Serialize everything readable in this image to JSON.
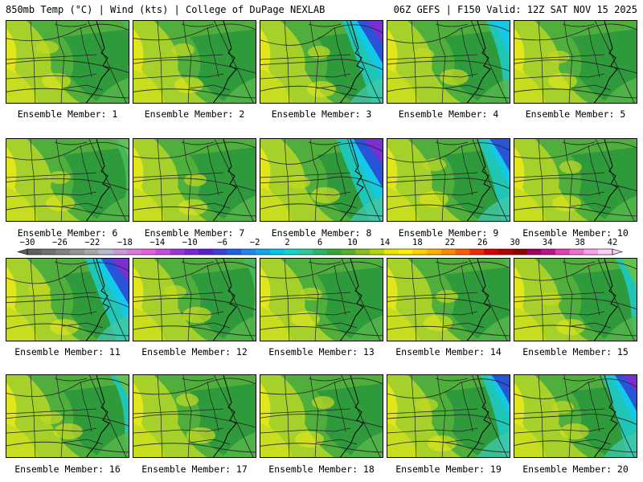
{
  "header": {
    "left_title": "850mb Temp (°C) | Wind (kts) | College of DuPage NEXLAB",
    "right_title": "06Z GEFS | F150 Valid: 12Z SAT NOV 15 2025"
  },
  "members": [
    {
      "label": "Ensemble Member: 1",
      "cold": 0.15
    },
    {
      "label": "Ensemble Member: 2",
      "cold": 0.05
    },
    {
      "label": "Ensemble Member: 3",
      "cold": 0.75
    },
    {
      "label": "Ensemble Member: 4",
      "cold": 0.45
    },
    {
      "label": "Ensemble Member: 5",
      "cold": 0.05
    },
    {
      "label": "Ensemble Member: 6",
      "cold": 0.3
    },
    {
      "label": "Ensemble Member: 7",
      "cold": 0.1
    },
    {
      "label": "Ensemble Member: 8",
      "cold": 0.85
    },
    {
      "label": "Ensemble Member: 9",
      "cold": 0.6
    },
    {
      "label": "Ensemble Member: 10",
      "cold": 0.1
    },
    {
      "label": "Ensemble Member: 11",
      "cold": 0.8
    },
    {
      "label": "Ensemble Member: 12",
      "cold": 0.25
    },
    {
      "label": "Ensemble Member: 13",
      "cold": 0.1
    },
    {
      "label": "Ensemble Member: 14",
      "cold": 0.15
    },
    {
      "label": "Ensemble Member: 15",
      "cold": 0.4
    },
    {
      "label": "Ensemble Member: 16",
      "cold": 0.35
    },
    {
      "label": "Ensemble Member: 17",
      "cold": 0.05
    },
    {
      "label": "Ensemble Member: 18",
      "cold": 0.05
    },
    {
      "label": "Ensemble Member: 19",
      "cold": 0.55
    },
    {
      "label": "Ensemble Member: 20",
      "cold": 0.65
    }
  ],
  "colorbar": {
    "ticks": [
      "−30",
      "−26",
      "−22",
      "−18",
      "−14",
      "−10",
      "−6",
      "−2",
      "2",
      "6",
      "10",
      "14",
      "18",
      "22",
      "26",
      "30",
      "34",
      "38",
      "42"
    ],
    "colors": [
      "#5f5f5f",
      "#707070",
      "#828282",
      "#949494",
      "#a8a8a8",
      "#b9b9d2",
      "#c79bd8",
      "#d77cde",
      "#e35fe0",
      "#c24fd9",
      "#9b37d6",
      "#7a25d6",
      "#5a1ed1",
      "#3a3fd6",
      "#1f5fe6",
      "#1f86ef",
      "#12a6ee",
      "#00c6e6",
      "#1ad3c6",
      "#2fc99a",
      "#2eb56a",
      "#3aa33a",
      "#5aae2c",
      "#86c01e",
      "#b4d40e",
      "#e6e800",
      "#fff000",
      "#ffd200",
      "#ffb000",
      "#ff8a00",
      "#ff5a00",
      "#f02a00",
      "#d80000",
      "#b40000",
      "#900000",
      "#a0005a",
      "#c0108c",
      "#e040b0",
      "#f070d0",
      "#f8a0e8",
      "#fcd0f4"
    ]
  }
}
